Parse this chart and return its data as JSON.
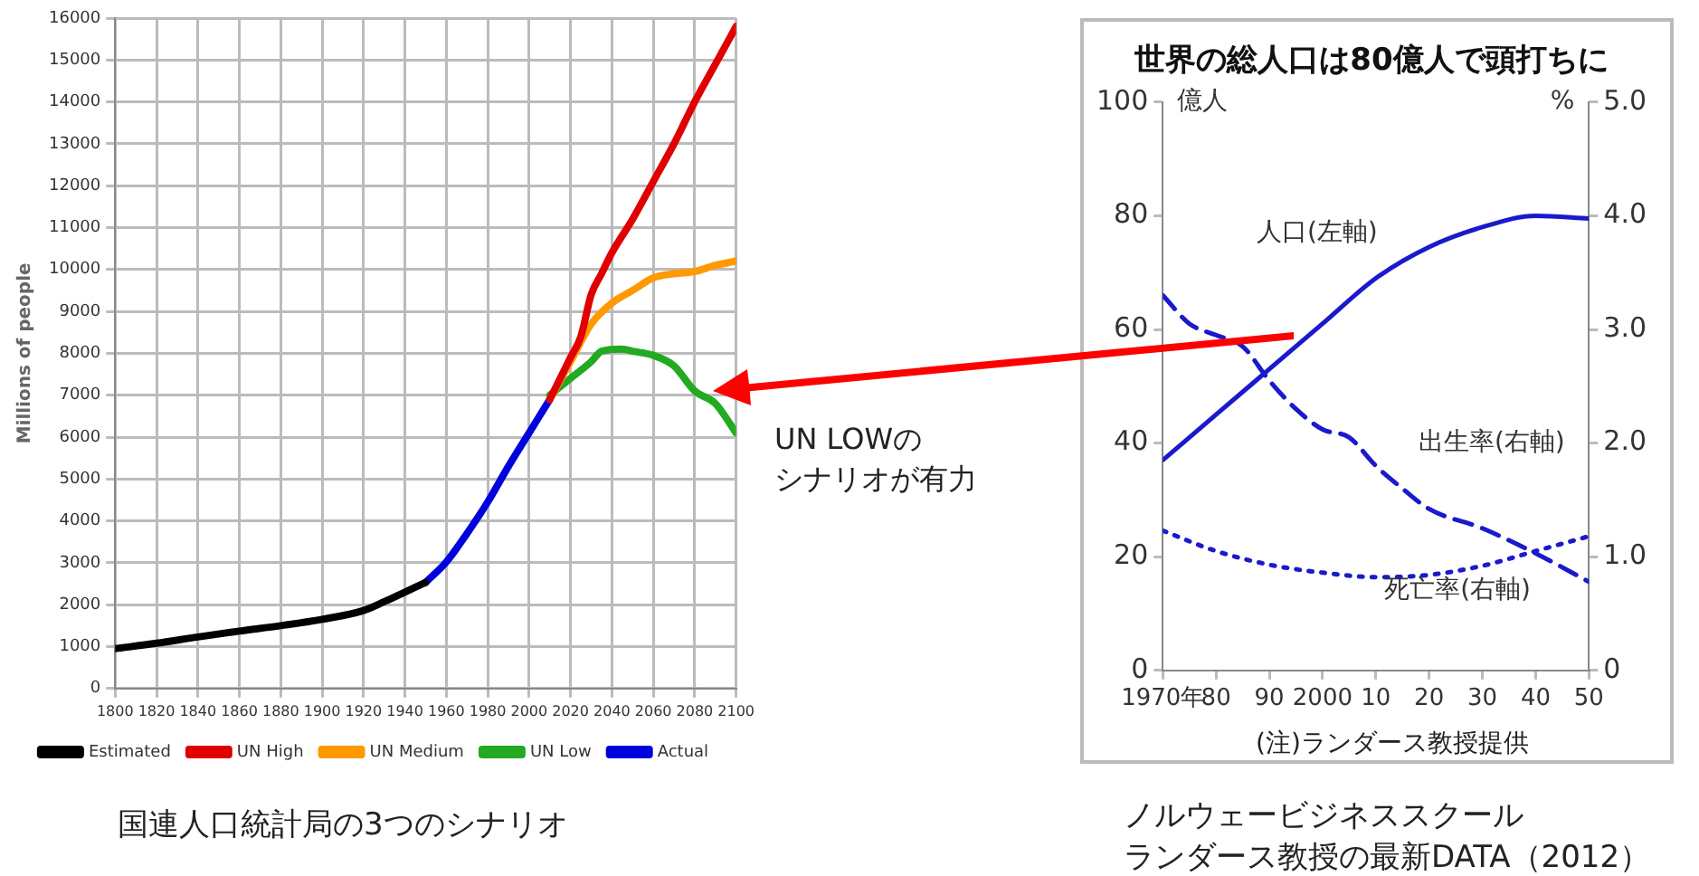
{
  "chart_data": [
    {
      "type": "line",
      "ylabel": "Millions of people",
      "xlim": [
        1800,
        2100
      ],
      "xticks": [
        1800,
        1820,
        1840,
        1860,
        1880,
        1900,
        1920,
        1940,
        1960,
        1980,
        2000,
        2020,
        2040,
        2060,
        2080,
        2100
      ],
      "ylim": [
        0,
        16000
      ],
      "yticks": [
        0,
        1000,
        2000,
        3000,
        4000,
        5000,
        6000,
        7000,
        8000,
        9000,
        10000,
        11000,
        12000,
        13000,
        14000,
        15000,
        16000
      ],
      "grid": true,
      "legend": "bottom",
      "marker": "none",
      "line_style": "solid",
      "annotations": [
        "UN LOWのシナリオが有力",
        "国連人口統計局の3つのシナリオ"
      ],
      "series": [
        {
          "name": "Estimated",
          "color": "#000000",
          "x": [
            1800,
            1820,
            1840,
            1860,
            1880,
            1900,
            1920,
            1930,
            1940,
            1950
          ],
          "values": [
            950,
            1080,
            1230,
            1370,
            1500,
            1650,
            1860,
            2070,
            2300,
            2530
          ]
        },
        {
          "name": "UN High",
          "color": "#e00000",
          "x": [
            2010,
            2015,
            2020,
            2025,
            2030,
            2035,
            2040,
            2050,
            2060,
            2070,
            2080,
            2090,
            2100
          ],
          "values": [
            6900,
            7400,
            7900,
            8400,
            9400,
            9900,
            10400,
            11200,
            12100,
            13000,
            14000,
            14900,
            15800
          ]
        },
        {
          "name": "UN Medium",
          "color": "#ff9900",
          "x": [
            2010,
            2020,
            2030,
            2040,
            2050,
            2060,
            2070,
            2080,
            2090,
            2100
          ],
          "values": [
            6900,
            7800,
            8700,
            9200,
            9500,
            9800,
            9900,
            9950,
            10100,
            10200
          ]
        },
        {
          "name": "UN Low",
          "color": "#22aa22",
          "x": [
            2010,
            2020,
            2030,
            2035,
            2045,
            2050,
            2060,
            2070,
            2080,
            2090,
            2100
          ],
          "values": [
            7000,
            7400,
            7800,
            8050,
            8100,
            8050,
            7950,
            7700,
            7100,
            6800,
            6100
          ]
        },
        {
          "name": "Actual",
          "color": "#0000dd",
          "x": [
            1950,
            1960,
            1970,
            1980,
            1990,
            2000,
            2010
          ],
          "values": [
            2530,
            3020,
            3700,
            4450,
            5300,
            6100,
            6900
          ]
        }
      ]
    },
    {
      "type": "line",
      "title": "世界の総人口は80億人で頭打ちに",
      "ylabel": "億人",
      "y2label": "%",
      "xlim": [
        1970,
        2050
      ],
      "xticks": [
        {
          "value": 1970,
          "label": "1970年"
        },
        {
          "value": 1980,
          "label": "80"
        },
        {
          "value": 1990,
          "label": "90"
        },
        2000,
        {
          "value": 2010,
          "label": "10"
        },
        {
          "value": 2020,
          "label": "20"
        },
        {
          "value": 2030,
          "label": "30"
        },
        {
          "value": 2040,
          "label": "40"
        },
        {
          "value": 2050,
          "label": "50"
        }
      ],
      "ylim": [
        0,
        100
      ],
      "yticks": [
        0,
        20,
        40,
        60,
        80,
        100
      ],
      "y2lim": [
        0,
        5
      ],
      "y2ticks": [
        0,
        {
          "value": 1,
          "label": "1.0"
        },
        {
          "value": 2,
          "label": "2.0"
        },
        {
          "value": 3,
          "label": "3.0"
        },
        {
          "value": 4,
          "label": "4.0"
        },
        {
          "value": 5,
          "label": "5.0"
        }
      ],
      "grid": false,
      "legend": false,
      "marker": "none",
      "annotations": [
        "(注)ランダース教授提供",
        "ノルウェービジネススクールランダース教授の最新DATA（2012）"
      ],
      "series": [
        {
          "name": "人口(左軸)",
          "color": "#1a1acc",
          "line_style": "solid",
          "x": [
            1970,
            1980,
            1990,
            2000,
            2010,
            2020,
            2030,
            2040,
            2050
          ],
          "values": [
            37,
            45,
            53,
            61,
            69,
            74.5,
            78,
            80,
            79.5
          ]
        },
        {
          "name": "出生率(右軸)",
          "color": "#1a1acc",
          "line_style": "dashed",
          "axis": "y2",
          "x": [
            1970,
            1975,
            1980,
            1985,
            1990,
            1995,
            2000,
            2005,
            2010,
            2015,
            2020,
            2030,
            2040,
            2050
          ],
          "values": [
            3.3,
            3.05,
            2.95,
            2.85,
            2.55,
            2.3,
            2.12,
            2.05,
            1.8,
            1.6,
            1.42,
            1.25,
            1.03,
            0.78
          ]
        },
        {
          "name": "死亡率(右軸)",
          "color": "#1a1acc",
          "line_style": "dotted",
          "axis": "y2",
          "x": [
            1970,
            1980,
            1990,
            2000,
            2010,
            2020,
            2030,
            2040,
            2050
          ],
          "values": [
            1.23,
            1.05,
            0.93,
            0.86,
            0.82,
            0.84,
            0.92,
            1.05,
            1.18
          ]
        }
      ]
    }
  ]
}
